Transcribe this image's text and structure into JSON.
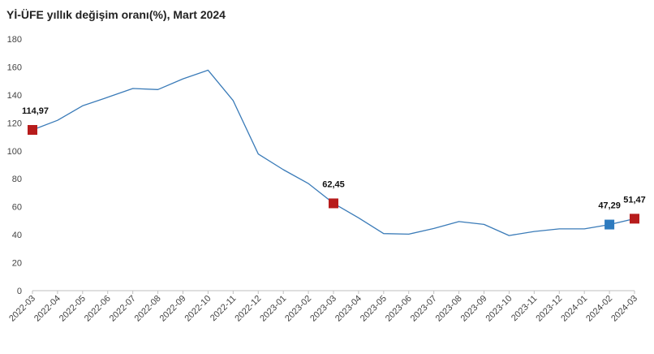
{
  "title": "Yİ-ÜFE yıllık değişim oranı(%), Mart 2024",
  "chart_data": {
    "type": "line",
    "title": "Yİ-ÜFE yıllık değişim oranı(%), Mart 2024",
    "xlabel": "",
    "ylabel": "",
    "ylim": [
      0,
      180
    ],
    "yticks": [
      0,
      20,
      40,
      60,
      80,
      100,
      120,
      140,
      160,
      180
    ],
    "grid": false,
    "categories": [
      "2022-03",
      "2022-04",
      "2022-05",
      "2022-06",
      "2022-07",
      "2022-08",
      "2022-09",
      "2022-10",
      "2022-11",
      "2022-12",
      "2023-01",
      "2023-02",
      "2023-03",
      "2023-04",
      "2023-05",
      "2023-06",
      "2023-07",
      "2023-08",
      "2023-09",
      "2023-10",
      "2023-11",
      "2023-12",
      "2024-01",
      "2024-02",
      "2024-03"
    ],
    "series": [
      {
        "color": "#3a7bb8",
        "values": [
          114.97,
          121.8,
          132.2,
          138.3,
          144.6,
          143.8,
          151.5,
          157.7,
          136.0,
          97.7,
          86.5,
          76.6,
          62.45,
          52.1,
          40.8,
          40.4,
          44.5,
          49.4,
          47.4,
          39.4,
          42.3,
          44.2,
          44.2,
          47.29,
          51.47
        ]
      }
    ],
    "highlights": [
      {
        "category": "2022-03",
        "label": "114,97",
        "color": "#b71c1c"
      },
      {
        "category": "2023-03",
        "label": "62,45",
        "color": "#b71c1c"
      },
      {
        "category": "2024-02",
        "label": "47,29",
        "color": "#2e7bbf"
      },
      {
        "category": "2024-03",
        "label": "51,47",
        "color": "#b71c1c"
      }
    ]
  }
}
